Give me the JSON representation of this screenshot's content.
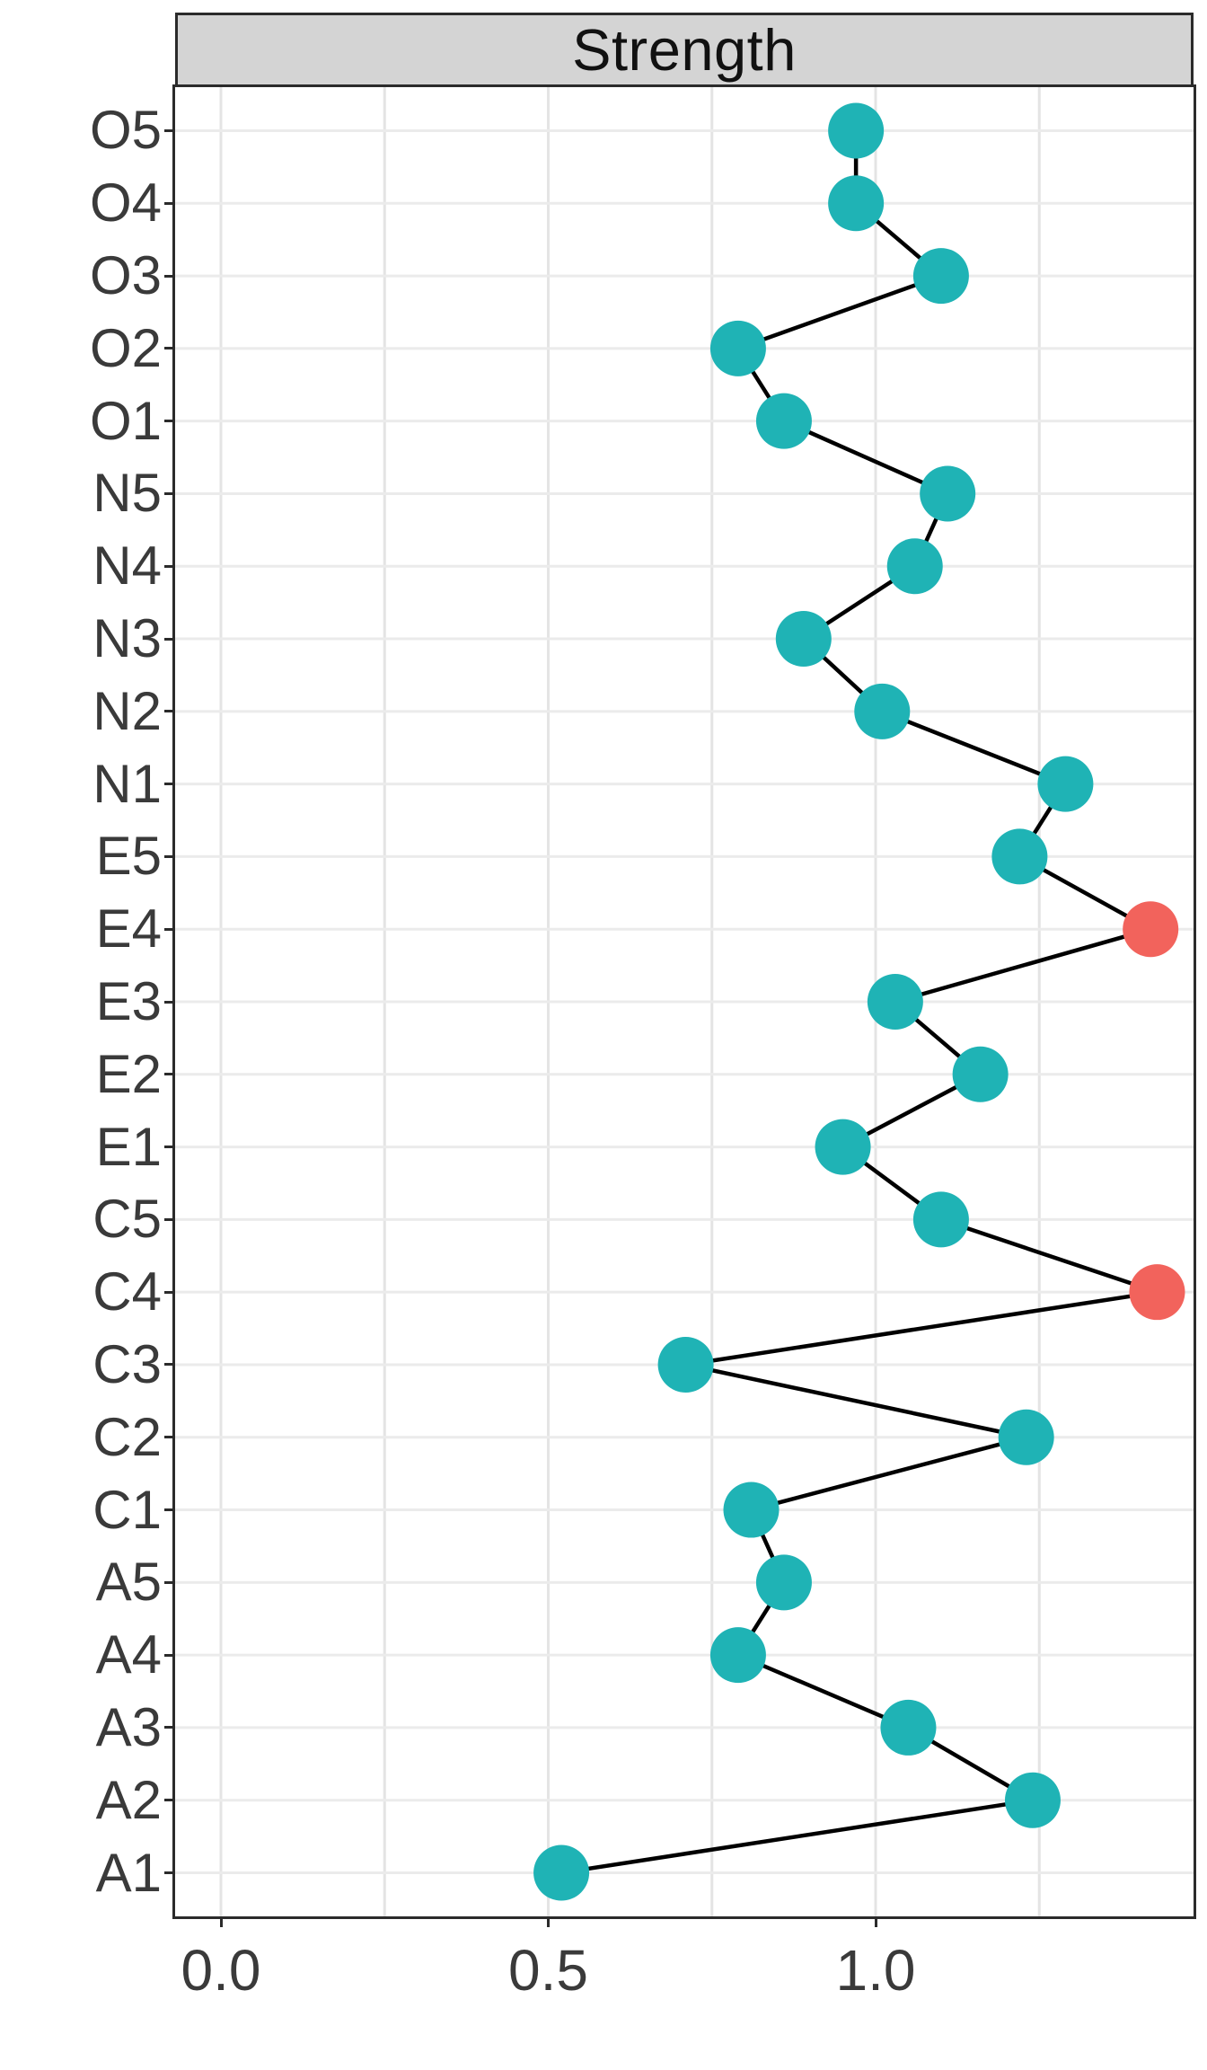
{
  "chart_data": {
    "type": "scatter",
    "connected": true,
    "orientation": "horizontal",
    "title": "Strength",
    "xlabel": "",
    "ylabel": "",
    "categories_top_to_bottom": [
      "O5",
      "O4",
      "O3",
      "O2",
      "O1",
      "N5",
      "N4",
      "N3",
      "N2",
      "N1",
      "E5",
      "E4",
      "E3",
      "E2",
      "E1",
      "C5",
      "C4",
      "C3",
      "C2",
      "C1",
      "A5",
      "A4",
      "A3",
      "A2",
      "A1"
    ],
    "series": [
      {
        "name": "Strength",
        "values": [
          0.97,
          0.97,
          1.1,
          0.79,
          0.86,
          1.11,
          1.06,
          0.89,
          1.01,
          1.29,
          1.22,
          1.42,
          1.03,
          1.16,
          0.95,
          1.1,
          1.43,
          0.71,
          1.23,
          0.81,
          0.86,
          0.79,
          1.05,
          1.24,
          0.52
        ]
      }
    ],
    "highlighted_categories": [
      "E4",
      "C4"
    ],
    "x_ticks": {
      "values": [
        0,
        0.5,
        1.0
      ],
      "labels": [
        "0.0",
        "0.5",
        "1.0"
      ]
    },
    "minor_grid_values": [
      0.25,
      0.75,
      1.25
    ],
    "xlim": [
      -0.07,
      1.48
    ],
    "grid": "on",
    "legend": "none",
    "colors": {
      "point": "#1FB3B5",
      "highlight": "#F2635C",
      "line": "#000000",
      "strip_background": "#D4D4D4",
      "panel_background": "#FFFFFF",
      "grid_major_vertical": "#E4E4E4",
      "grid_horizontal": "#EBEBEB",
      "axis_text": "#3A3A3A",
      "border": "#2B2B2B"
    }
  }
}
